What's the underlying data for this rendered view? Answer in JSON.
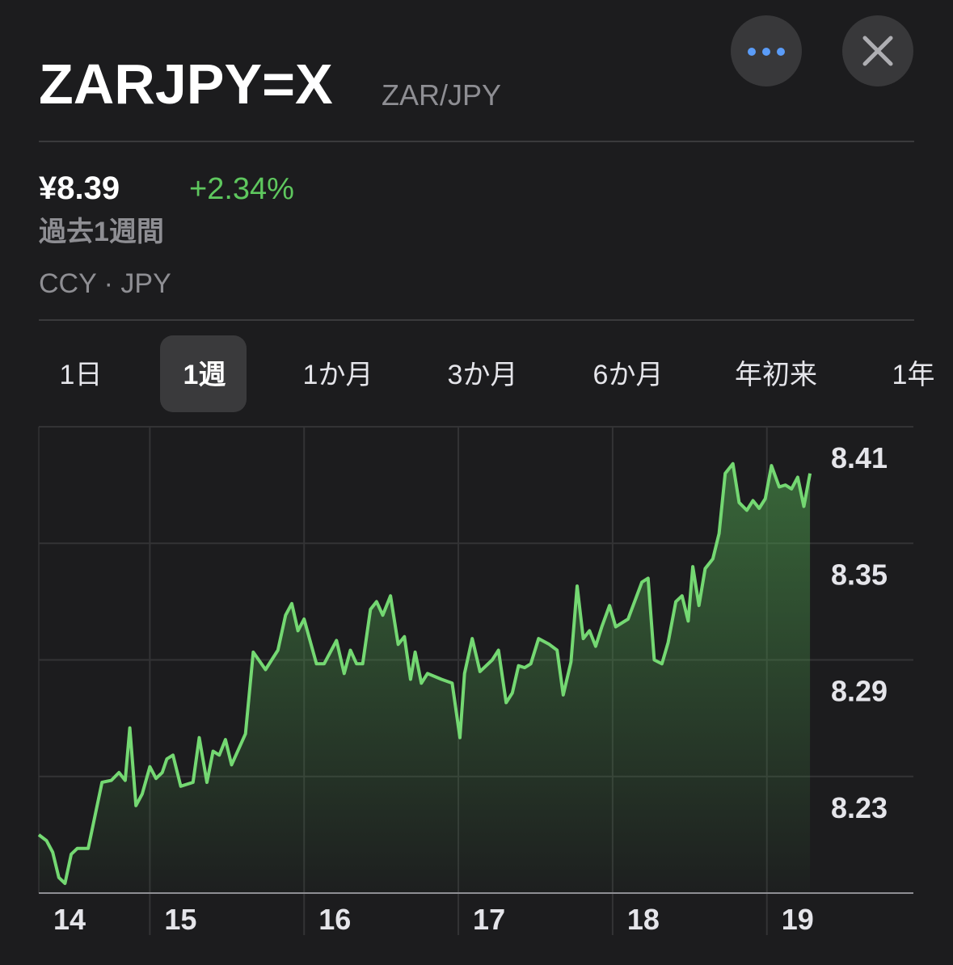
{
  "header": {
    "symbol": "ZARJPY=X",
    "name": "ZAR/JPY"
  },
  "quote": {
    "price": "¥8.39",
    "change": "+2.34%",
    "period": "過去1週間",
    "exchange": "CCY · JPY"
  },
  "tabs": {
    "items": [
      "1日",
      "1週",
      "1か月",
      "3か月",
      "6か月",
      "年初来",
      "1年"
    ],
    "selected": 1
  },
  "chart_data": {
    "type": "area",
    "x": [
      14.28,
      14.33,
      14.37,
      14.41,
      14.45,
      14.49,
      14.53,
      14.6,
      14.69,
      14.75,
      14.8,
      14.84,
      14.87,
      14.91,
      14.95,
      15.0,
      15.04,
      15.08,
      15.11,
      15.15,
      15.2,
      15.28,
      15.32,
      15.37,
      15.41,
      15.45,
      15.49,
      15.53,
      15.62,
      15.67,
      15.75,
      15.83,
      15.88,
      15.92,
      15.96,
      16.0,
      16.08,
      16.13,
      16.21,
      16.26,
      16.3,
      16.34,
      16.38,
      16.43,
      16.47,
      16.51,
      16.56,
      16.61,
      16.65,
      16.69,
      16.72,
      16.76,
      16.8,
      16.89,
      16.96,
      17.01,
      17.04,
      17.09,
      17.14,
      17.22,
      17.26,
      17.31,
      17.35,
      17.39,
      17.43,
      17.47,
      17.52,
      17.59,
      17.64,
      17.68,
      17.73,
      17.77,
      17.81,
      17.85,
      17.89,
      17.93,
      17.98,
      18.02,
      18.1,
      18.19,
      18.23,
      18.27,
      18.32,
      18.36,
      18.41,
      18.45,
      18.49,
      18.52,
      18.56,
      18.6,
      18.65,
      18.69,
      18.73,
      18.78,
      18.82,
      18.87,
      18.91,
      18.95,
      18.99,
      19.03,
      19.08,
      19.12,
      19.16,
      19.2,
      19.24,
      19.28
    ],
    "series": [
      {
        "name": "ZARJPY=X",
        "color": "#74d872",
        "values": [
          8.2,
          8.197,
          8.191,
          8.178,
          8.175,
          8.19,
          8.193,
          8.193,
          8.227,
          8.228,
          8.232,
          8.228,
          8.255,
          8.215,
          8.221,
          8.235,
          8.229,
          8.232,
          8.239,
          8.241,
          8.225,
          8.227,
          8.25,
          8.227,
          8.243,
          8.241,
          8.249,
          8.236,
          8.252,
          8.294,
          8.285,
          8.295,
          8.313,
          8.319,
          8.305,
          8.311,
          8.288,
          8.288,
          8.3,
          8.283,
          8.295,
          8.288,
          8.288,
          8.316,
          8.32,
          8.313,
          8.323,
          8.298,
          8.302,
          8.28,
          8.294,
          8.278,
          8.283,
          8.28,
          8.278,
          8.25,
          8.283,
          8.301,
          8.284,
          8.29,
          8.295,
          8.268,
          8.273,
          8.287,
          8.286,
          8.288,
          8.301,
          8.298,
          8.295,
          8.272,
          8.289,
          8.328,
          8.301,
          8.305,
          8.297,
          8.307,
          8.318,
          8.307,
          8.311,
          8.33,
          8.332,
          8.29,
          8.288,
          8.299,
          8.32,
          8.323,
          8.31,
          8.338,
          8.318,
          8.337,
          8.342,
          8.355,
          8.386,
          8.391,
          8.371,
          8.367,
          8.372,
          8.368,
          8.373,
          8.39,
          8.379,
          8.38,
          8.378,
          8.384,
          8.369,
          8.386
        ]
      }
    ],
    "xlim": [
      14.28,
      19.95
    ],
    "xticks": [
      14,
      15,
      16,
      17,
      18,
      19
    ],
    "ylim": [
      8.17,
      8.41
    ],
    "yticks": [
      8.41,
      8.35,
      8.29,
      8.23
    ],
    "grid": true
  }
}
